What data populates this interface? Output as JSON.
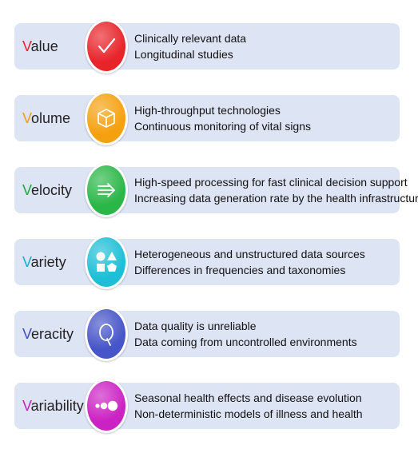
{
  "rows": [
    {
      "initial": "V",
      "rest": "alue",
      "initial_color": "#e8242a",
      "circle_color": "#e8242a",
      "icon": "checkmark-icon",
      "lines": [
        "Clinically relevant data",
        "Longitudinal studies"
      ]
    },
    {
      "initial": "V",
      "rest": "olume",
      "initial_color": "#f29c12",
      "circle_color": "#f5a10f",
      "icon": "cube-icon",
      "lines": [
        "High-throughput technologies",
        "Continuous monitoring of vital signs"
      ]
    },
    {
      "initial": "V",
      "rest": "elocity",
      "initial_color": "#1faa3c",
      "circle_color": "#2bb748",
      "icon": "speed-arrow-icon",
      "lines": [
        "High-speed processing for fast clinical decision support",
        "Increasing data generation rate by the health infrastructure"
      ]
    },
    {
      "initial": "V",
      "rest": "ariety",
      "initial_color": "#18aecd",
      "circle_color": "#1ebfd6",
      "icon": "shapes-icon",
      "lines": [
        "Heterogeneous and unstructured data sources",
        "Differences in frequencies and taxonomies"
      ]
    },
    {
      "initial": "V",
      "rest": "eracity",
      "initial_color": "#3d4fc4",
      "circle_color": "#4655c8",
      "icon": "magnifier-q-icon",
      "lines": [
        "Data quality is unreliable",
        "Data coming from uncontrolled environments"
      ]
    },
    {
      "initial": "V",
      "rest": "ariability",
      "initial_color": "#c121b8",
      "circle_color": "#cb22c3",
      "icon": "dots-icon",
      "lines": [
        "Seasonal health effects and disease evolution",
        "Non-deterministic models of illness and health"
      ]
    }
  ]
}
